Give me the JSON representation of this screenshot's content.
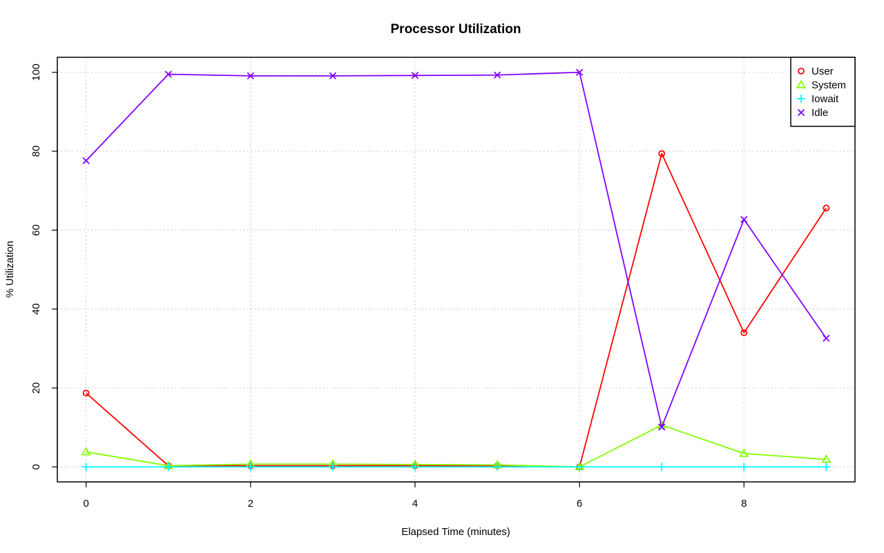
{
  "chart_data": {
    "type": "line",
    "title": "Processor Utilization",
    "xlabel": "Elapsed Time (minutes)",
    "ylabel": "% Utilization",
    "x": [
      0,
      1,
      2,
      3,
      4,
      5,
      6,
      7,
      8,
      9
    ],
    "xlim": [
      -0.35,
      9.35
    ],
    "ylim": [
      -3.8,
      103.8
    ],
    "xticks": [
      0,
      2,
      4,
      6,
      8
    ],
    "yticks": [
      0,
      20,
      40,
      60,
      80,
      100
    ],
    "grid": true,
    "legend_position": "top-right",
    "series": [
      {
        "name": "User",
        "color": "#ff0000",
        "marker": "circle",
        "values": [
          18.7,
          0.3,
          0.3,
          0.3,
          0.3,
          0.3,
          0.0,
          79.4,
          34.0,
          65.6
        ]
      },
      {
        "name": "System",
        "color": "#80ff00",
        "marker": "triangle",
        "values": [
          3.8,
          0.3,
          0.7,
          0.7,
          0.6,
          0.5,
          0.0,
          10.6,
          3.4,
          1.9
        ]
      },
      {
        "name": "Iowait",
        "color": "#00ffff",
        "marker": "plus",
        "values": [
          0,
          0,
          0,
          0,
          0,
          0,
          0,
          0,
          0,
          0
        ]
      },
      {
        "name": "Idle",
        "color": "#8000ff",
        "marker": "cross",
        "values": [
          77.6,
          99.5,
          99.1,
          99.1,
          99.2,
          99.3,
          100.0,
          10.1,
          62.7,
          32.6
        ]
      }
    ]
  }
}
